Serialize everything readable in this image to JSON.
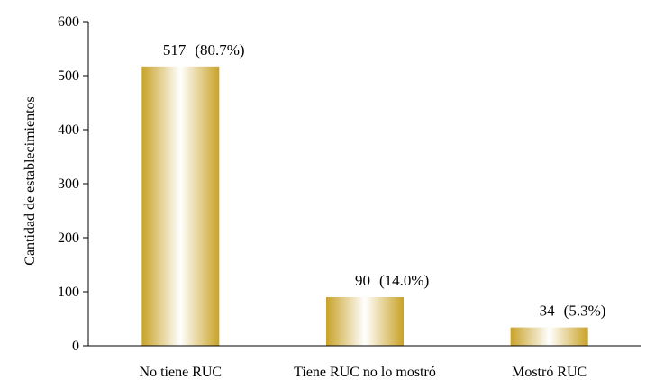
{
  "chart_data": {
    "type": "bar",
    "title": "",
    "xlabel": "",
    "ylabel": "Cantidad de establecimientos",
    "ylim": [
      0,
      600
    ],
    "yticks": [
      0,
      100,
      200,
      300,
      400,
      500,
      600
    ],
    "grid": false,
    "legend": "none",
    "bar_color": "#C9A227",
    "categories": [
      "No tiene RUC",
      "Tiene RUC no lo mostró",
      "Mostró RUC"
    ],
    "values": [
      517,
      90,
      34
    ],
    "percent_labels": [
      "(80.7%)",
      "(14.0%)",
      "(5.3%)"
    ]
  }
}
